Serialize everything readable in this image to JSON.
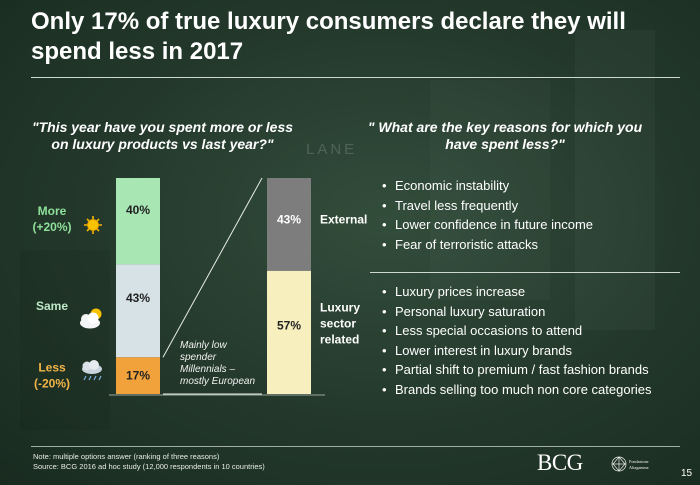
{
  "title": "Only 17% of true luxury consumers declare they will spend less in 2017",
  "left_question": "\"This year have you spent more or less on luxury products vs last year?\"",
  "right_question": "\" What are the key reasons for which you have spent less?\"",
  "background_word": "LANE",
  "colors": {
    "more": "#a8e6b4",
    "same": "#d6e2e6",
    "less": "#f2a23a",
    "external": "#7d7d7d",
    "luxury": "#f7efbe"
  },
  "chart_data": [
    {
      "type": "bar",
      "title": "\"This year have you spent more or less on luxury products vs last year?\"",
      "stacked": true,
      "unit": "%",
      "ylim": [
        0,
        100
      ],
      "segments": [
        {
          "key": "more",
          "label": "More",
          "sublabel": "(+20%)",
          "value": 40,
          "display": "40%",
          "icon": "sun-icon"
        },
        {
          "key": "same",
          "label": "Same",
          "sublabel": "",
          "value": 43,
          "display": "43%",
          "icon": "cloud-sun-icon"
        },
        {
          "key": "less",
          "label": "Less",
          "sublabel": "(-20%)",
          "value": 17,
          "display": "17%",
          "icon": "rain-cloud-icon"
        }
      ],
      "annotation": "Mainly low spender Millennials – mostly European"
    },
    {
      "type": "bar",
      "title": "\" What are the key reasons for which you have spent less?\"",
      "stacked": true,
      "unit": "%",
      "ylim": [
        0,
        100
      ],
      "segments": [
        {
          "key": "external",
          "label": "External",
          "value": 43,
          "display": "43%"
        },
        {
          "key": "luxury",
          "label": "Luxury sector related",
          "label_lines": [
            "Luxury",
            "sector",
            "related"
          ],
          "value": 57,
          "display": "57%"
        }
      ]
    }
  ],
  "reasons": {
    "external": [
      "Economic instability",
      "Travel less frequently",
      "Lower confidence in future income",
      "Fear of terroristic attacks"
    ],
    "luxury": [
      "Luxury prices increase",
      "Personal luxury saturation",
      "Less special occasions to attend",
      "Lower interest in luxury brands",
      "Partial shift to premium / fast fashion brands",
      "Brands selling too much non core categories"
    ]
  },
  "footnote": {
    "line1": "Note: multiple options answer (ranking of three reasons)",
    "line2": "Source: BCG 2016 ad hoc study (12,000 respondents in 10 countries)"
  },
  "logos": {
    "bcg": "BCG",
    "altagamma_line1": "Fondazione",
    "altagamma_line2": "Altagamma"
  },
  "page_number": "15"
}
